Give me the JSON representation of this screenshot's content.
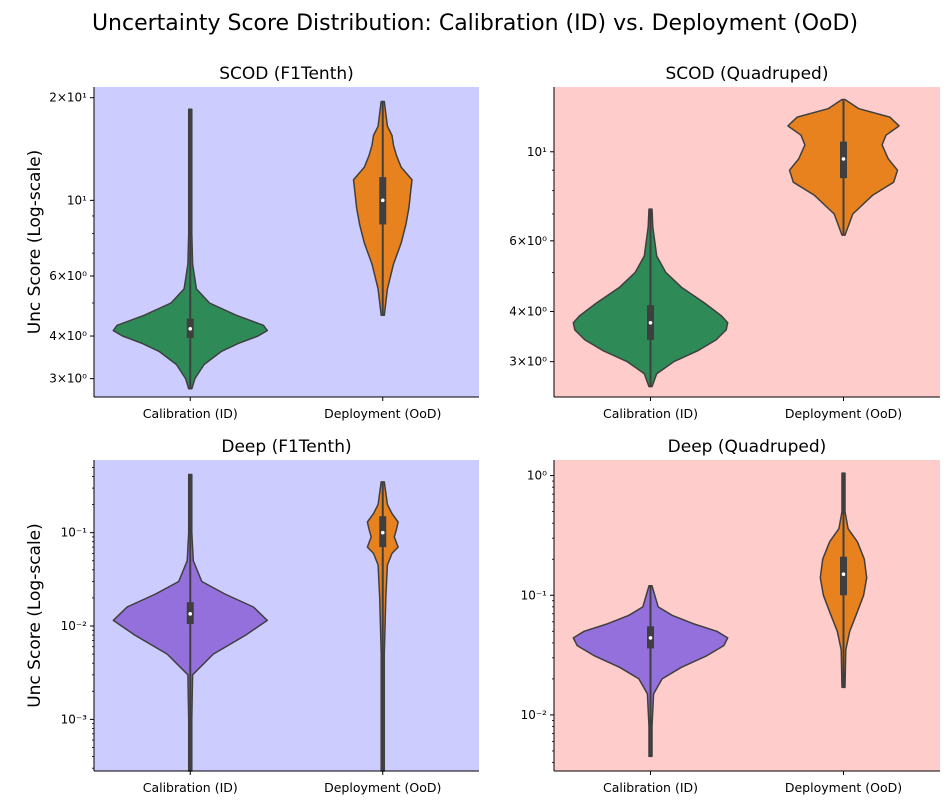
{
  "title": "Uncertainty Score Distribution: Calibration (ID) vs. Deployment (OoD)",
  "chart_data": [
    {
      "type": "violin",
      "title": "SCOD (F1Tenth)",
      "ylabel": "Unc Score (Log-scale)",
      "yscale": "log",
      "ylim": [
        2.65,
        21.5
      ],
      "background": "#ccccff",
      "categories": [
        "Calibration (ID)",
        "Deployment (OoD)"
      ],
      "yticks": [
        {
          "value": 3,
          "label": "3×10⁰"
        },
        {
          "value": 4,
          "label": "4×10⁰"
        },
        {
          "value": 6,
          "label": "6×10⁰"
        },
        {
          "value": 10,
          "label": "10¹"
        },
        {
          "value": 20,
          "label": "2×10¹"
        }
      ],
      "minor_ticks": [
        5,
        7,
        8,
        9
      ],
      "violins": [
        {
          "category": "Calibration (ID)",
          "color": "#2e8b57",
          "min": 2.8,
          "max": 18.5,
          "q1": 3.95,
          "median": 4.2,
          "q3": 4.5,
          "profile": [
            [
              2.8,
              0.02
            ],
            [
              3.0,
              0.06
            ],
            [
              3.3,
              0.18
            ],
            [
              3.6,
              0.4
            ],
            [
              3.8,
              0.62
            ],
            [
              4.0,
              0.88
            ],
            [
              4.15,
              1.0
            ],
            [
              4.3,
              0.95
            ],
            [
              4.6,
              0.6
            ],
            [
              5.0,
              0.25
            ],
            [
              5.5,
              0.08
            ],
            [
              6.5,
              0.03
            ],
            [
              8.0,
              0.02
            ],
            [
              18.5,
              0.02
            ]
          ]
        },
        {
          "category": "Deployment (OoD)",
          "color": "#e8821e",
          "min": 4.6,
          "max": 19.5,
          "q1": 8.5,
          "median": 10.0,
          "q3": 11.7,
          "profile": [
            [
              4.6,
              0.02
            ],
            [
              5.5,
              0.06
            ],
            [
              6.5,
              0.14
            ],
            [
              7.5,
              0.24
            ],
            [
              8.5,
              0.3
            ],
            [
              9.5,
              0.34
            ],
            [
              10.5,
              0.36
            ],
            [
              11.5,
              0.38
            ],
            [
              12.5,
              0.24
            ],
            [
              13.5,
              0.18
            ],
            [
              14.5,
              0.14
            ],
            [
              15.5,
              0.12
            ],
            [
              16.5,
              0.06
            ],
            [
              19.5,
              0.02
            ]
          ]
        }
      ]
    },
    {
      "type": "violin",
      "title": "SCOD (Quadruped)",
      "ylabel": "",
      "yscale": "log",
      "ylim": [
        2.45,
        14.5
      ],
      "background": "#ffcccc",
      "categories": [
        "Calibration (ID)",
        "Deployment (OoD)"
      ],
      "yticks": [
        {
          "value": 3,
          "label": "3×10⁰"
        },
        {
          "value": 4,
          "label": "4×10⁰"
        },
        {
          "value": 6,
          "label": "6×10⁰"
        },
        {
          "value": 10,
          "label": "10¹"
        }
      ],
      "minor_ticks": [
        5,
        7,
        8,
        9
      ],
      "violins": [
        {
          "category": "Calibration (ID)",
          "color": "#2e8b57",
          "min": 2.6,
          "max": 7.2,
          "q1": 3.4,
          "median": 3.75,
          "q3": 4.15,
          "profile": [
            [
              2.6,
              0.02
            ],
            [
              2.8,
              0.08
            ],
            [
              3.0,
              0.3
            ],
            [
              3.2,
              0.62
            ],
            [
              3.4,
              0.85
            ],
            [
              3.6,
              0.98
            ],
            [
              3.75,
              1.0
            ],
            [
              3.9,
              0.92
            ],
            [
              4.2,
              0.7
            ],
            [
              4.6,
              0.4
            ],
            [
              5.0,
              0.2
            ],
            [
              5.5,
              0.08
            ],
            [
              6.5,
              0.03
            ],
            [
              7.2,
              0.02
            ]
          ]
        },
        {
          "category": "Deployment (OoD)",
          "color": "#e8821e",
          "min": 6.2,
          "max": 13.5,
          "q1": 8.6,
          "median": 9.6,
          "q3": 10.6,
          "profile": [
            [
              6.2,
              0.02
            ],
            [
              7.0,
              0.12
            ],
            [
              7.8,
              0.38
            ],
            [
              8.4,
              0.65
            ],
            [
              9.0,
              0.7
            ],
            [
              9.6,
              0.58
            ],
            [
              10.4,
              0.5
            ],
            [
              11.0,
              0.55
            ],
            [
              11.6,
              0.72
            ],
            [
              12.2,
              0.6
            ],
            [
              12.8,
              0.2
            ],
            [
              13.5,
              0.02
            ]
          ]
        }
      ]
    },
    {
      "type": "violin",
      "title": "Deep (F1Tenth)",
      "ylabel": "Unc Score (Log-scale)",
      "yscale": "log",
      "ylim": [
        0.00028,
        0.6
      ],
      "background": "#ccccff",
      "categories": [
        "Calibration (ID)",
        "Deployment (OoD)"
      ],
      "yticks": [
        {
          "value": 0.001,
          "label": "10⁻³"
        },
        {
          "value": 0.01,
          "label": "10⁻²"
        },
        {
          "value": 0.1,
          "label": "10⁻¹"
        }
      ],
      "minor_ticks": [
        0.0003,
        0.0004,
        0.0005,
        0.0006,
        0.0007,
        0.0008,
        0.0009,
        0.002,
        0.003,
        0.004,
        0.005,
        0.006,
        0.007,
        0.008,
        0.009,
        0.02,
        0.03,
        0.04,
        0.05,
        0.06,
        0.07,
        0.08,
        0.09,
        0.2,
        0.3,
        0.4,
        0.5
      ],
      "violins": [
        {
          "category": "Calibration (ID)",
          "color": "#9370db",
          "min": 0.00028,
          "max": 0.42,
          "q1": 0.0105,
          "median": 0.0135,
          "q3": 0.018,
          "profile": [
            [
              0.00028,
              0.02
            ],
            [
              0.001,
              0.02
            ],
            [
              0.003,
              0.03
            ],
            [
              0.005,
              0.3
            ],
            [
              0.008,
              0.72
            ],
            [
              0.0115,
              1.0
            ],
            [
              0.016,
              0.82
            ],
            [
              0.022,
              0.45
            ],
            [
              0.03,
              0.15
            ],
            [
              0.05,
              0.04
            ],
            [
              0.1,
              0.02
            ],
            [
              0.42,
              0.02
            ]
          ]
        },
        {
          "category": "Deployment (OoD)",
          "color": "#e8821e",
          "min": 0.00028,
          "max": 0.35,
          "q1": 0.07,
          "median": 0.1,
          "q3": 0.15,
          "profile": [
            [
              0.00028,
              0.02
            ],
            [
              0.005,
              0.02
            ],
            [
              0.02,
              0.04
            ],
            [
              0.045,
              0.06
            ],
            [
              0.06,
              0.12
            ],
            [
              0.07,
              0.2
            ],
            [
              0.09,
              0.15
            ],
            [
              0.11,
              0.18
            ],
            [
              0.13,
              0.2
            ],
            [
              0.16,
              0.12
            ],
            [
              0.2,
              0.06
            ],
            [
              0.35,
              0.02
            ]
          ]
        }
      ]
    },
    {
      "type": "violin",
      "title": "Deep (Quadruped)",
      "ylabel": "",
      "yscale": "log",
      "ylim": [
        0.0034,
        1.35
      ],
      "background": "#ffcccc",
      "categories": [
        "Calibration (ID)",
        "Deployment (OoD)"
      ],
      "yticks": [
        {
          "value": 0.01,
          "label": "10⁻²"
        },
        {
          "value": 0.1,
          "label": "10⁻¹"
        },
        {
          "value": 1,
          "label": "10⁰"
        }
      ],
      "minor_ticks": [
        0.004,
        0.005,
        0.006,
        0.007,
        0.008,
        0.009,
        0.02,
        0.03,
        0.04,
        0.05,
        0.06,
        0.07,
        0.08,
        0.09,
        0.2,
        0.3,
        0.4,
        0.5,
        0.6,
        0.7,
        0.8,
        0.9
      ],
      "violins": [
        {
          "category": "Calibration (ID)",
          "color": "#9370db",
          "min": 0.0045,
          "max": 0.12,
          "q1": 0.036,
          "median": 0.044,
          "q3": 0.055,
          "profile": [
            [
              0.0045,
              0.02
            ],
            [
              0.008,
              0.02
            ],
            [
              0.015,
              0.04
            ],
            [
              0.02,
              0.15
            ],
            [
              0.025,
              0.4
            ],
            [
              0.031,
              0.72
            ],
            [
              0.038,
              0.95
            ],
            [
              0.044,
              1.0
            ],
            [
              0.05,
              0.86
            ],
            [
              0.058,
              0.55
            ],
            [
              0.068,
              0.28
            ],
            [
              0.08,
              0.1
            ],
            [
              0.12,
              0.02
            ]
          ]
        },
        {
          "category": "Deployment (OoD)",
          "color": "#e8821e",
          "min": 0.017,
          "max": 1.05,
          "q1": 0.1,
          "median": 0.15,
          "q3": 0.21,
          "profile": [
            [
              0.017,
              0.02
            ],
            [
              0.035,
              0.03
            ],
            [
              0.05,
              0.08
            ],
            [
              0.07,
              0.17
            ],
            [
              0.1,
              0.26
            ],
            [
              0.14,
              0.3
            ],
            [
              0.2,
              0.27
            ],
            [
              0.28,
              0.18
            ],
            [
              0.36,
              0.06
            ],
            [
              0.5,
              0.02
            ],
            [
              1.05,
              0.02
            ]
          ]
        }
      ]
    }
  ]
}
